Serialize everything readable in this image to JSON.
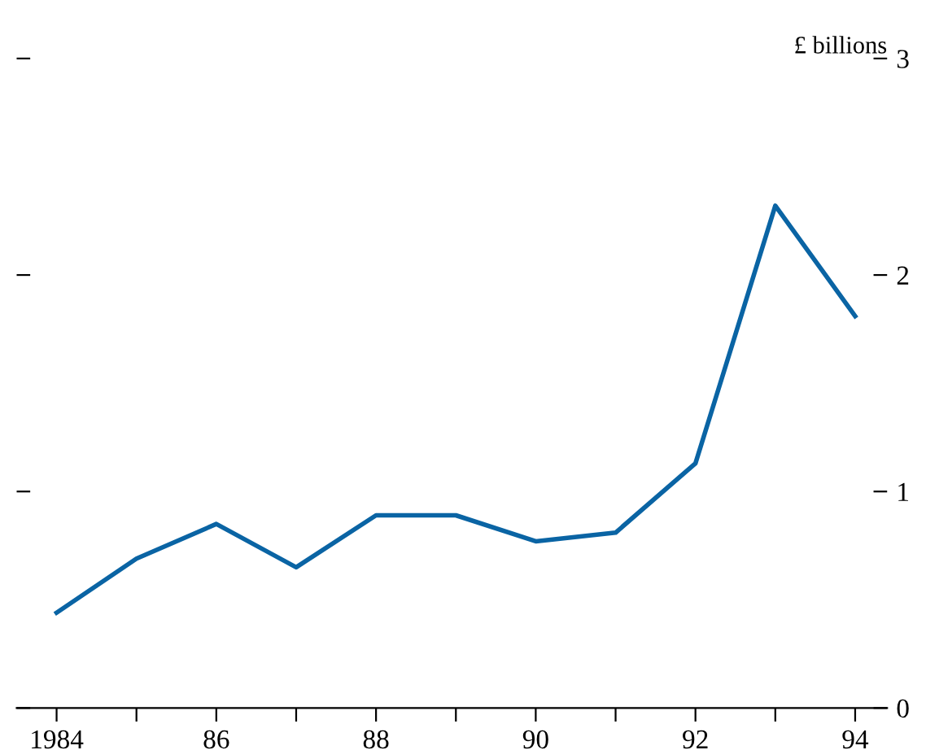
{
  "chart_data": {
    "type": "line",
    "ylabel": "£ billions",
    "x": [
      1984,
      1985,
      1986,
      1987,
      1988,
      1989,
      1990,
      1991,
      1992,
      1993,
      1994
    ],
    "series": [
      {
        "color": "#0a64a4",
        "values": [
          0.44,
          0.69,
          0.85,
          0.65,
          0.89,
          0.89,
          0.77,
          0.81,
          1.13,
          2.32,
          1.81
        ]
      }
    ],
    "xlim": [
      1983.5,
      1994.4
    ],
    "ylim": [
      0,
      3
    ],
    "xticks": [
      1984,
      {
        "value": 1985,
        "label": null
      },
      {
        "value": 1986,
        "label": "86"
      },
      {
        "value": 1987,
        "label": null
      },
      {
        "value": 1988,
        "label": "88"
      },
      {
        "value": 1989,
        "label": null
      },
      {
        "value": 1990,
        "label": "90"
      },
      {
        "value": 1991,
        "label": null
      },
      {
        "value": 1992,
        "label": "92"
      },
      {
        "value": 1993,
        "label": null
      },
      {
        "value": 1994,
        "label": "94"
      }
    ],
    "yticks": [
      0,
      1,
      2,
      3
    ],
    "grid": false,
    "legend": false,
    "marker": "none",
    "line_style": "solid"
  }
}
